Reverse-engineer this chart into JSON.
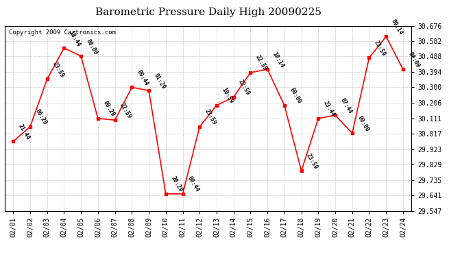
{
  "title": "Barometric Pressure Daily High 20090225",
  "copyright": "Copyright 2009 Cartronics.com",
  "x_labels": [
    "02/01",
    "02/02",
    "02/03",
    "02/04",
    "02/05",
    "02/06",
    "02/07",
    "02/08",
    "02/09",
    "02/10",
    "02/11",
    "02/12",
    "02/13",
    "02/14",
    "02/15",
    "02/16",
    "02/17",
    "02/18",
    "02/19",
    "02/20",
    "02/21",
    "02/22",
    "02/23",
    "02/24"
  ],
  "y_values": [
    29.97,
    30.06,
    30.35,
    30.54,
    30.49,
    30.11,
    30.1,
    30.3,
    30.28,
    29.65,
    29.65,
    30.06,
    30.19,
    30.24,
    30.39,
    30.41,
    30.19,
    29.79,
    30.11,
    30.13,
    30.02,
    30.48,
    30.61,
    30.41
  ],
  "time_labels": [
    "21:44",
    "06:29",
    "23:59",
    "18:44",
    "00:00",
    "00:29",
    "22:59",
    "09:44",
    "01:29",
    "20:29",
    "00:44",
    "23:59",
    "10:59",
    "22:59",
    "22:59",
    "10:14",
    "00:00",
    "23:59",
    "23:44",
    "07:44",
    "00:00",
    "23:59",
    "09:14",
    "00:00"
  ],
  "ylim_min": 29.547,
  "ylim_max": 30.676,
  "y_ticks": [
    29.547,
    29.641,
    29.735,
    29.829,
    29.923,
    30.017,
    30.111,
    30.206,
    30.3,
    30.394,
    30.488,
    30.582,
    30.676
  ],
  "line_color": "red",
  "marker_color": "red",
  "marker": "s",
  "marker_size": 3,
  "background_color": "#ffffff",
  "grid_color": "#bbbbbb",
  "title_fontsize": 11,
  "annotation_fontsize": 6,
  "tick_fontsize": 7,
  "copyright_fontsize": 6.5
}
